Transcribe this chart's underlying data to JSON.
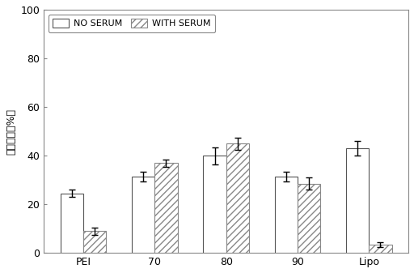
{
  "categories": [
    "PEI",
    "70",
    "80",
    "90",
    "Lipo"
  ],
  "no_serum_values": [
    24.5,
    31.5,
    40.0,
    31.5,
    43.0
  ],
  "with_serum_values": [
    9.0,
    37.0,
    45.0,
    28.5,
    3.5
  ],
  "no_serum_errors": [
    1.5,
    2.0,
    3.5,
    2.0,
    3.0
  ],
  "with_serum_errors": [
    1.5,
    1.5,
    2.5,
    2.5,
    1.0
  ],
  "ylabel": "转染效率（%）",
  "ylim": [
    0,
    100
  ],
  "yticks": [
    0,
    20,
    40,
    60,
    80,
    100
  ],
  "bar_width": 0.32,
  "no_serum_color": "#ffffff",
  "with_serum_color": "#ffffff",
  "hatch_color": "#888888",
  "edge_color": "#555555",
  "legend_no_serum": "NO SERUM",
  "legend_with_serum": "WITH SERUM",
  "background_color": "#ffffff",
  "plot_bg_color": "#ffffff",
  "hatch_pattern": "////",
  "tick_fontsize": 9,
  "label_fontsize": 9,
  "legend_fontsize": 8
}
